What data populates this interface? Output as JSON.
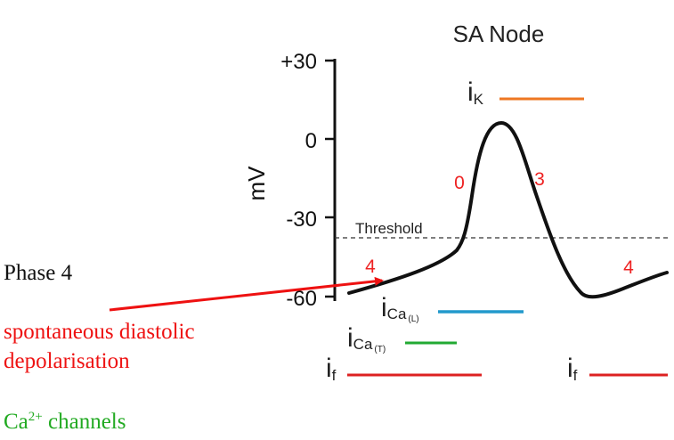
{
  "title": "SA Node",
  "y_axis": {
    "label": "mV",
    "ticks": [
      "+30",
      "0",
      "-30",
      "-60"
    ]
  },
  "threshold_label": "Threshold",
  "phase_labels": {
    "phase4_left": "4",
    "phase0": "0",
    "phase3": "3",
    "phase4_right": "4"
  },
  "currents": {
    "iK": {
      "main": "i",
      "sub": "K",
      "color": "#ee7722"
    },
    "iCaL": {
      "main": "i",
      "sub": "Ca",
      "subsub": "(L)",
      "color": "#2299cc"
    },
    "iCaT": {
      "main": "i",
      "sub": "Ca",
      "subsub": "(T)",
      "color": "#22aa33"
    },
    "if_left": {
      "main": "i",
      "sub": "f",
      "color": "#dd2222"
    },
    "if_right": {
      "main": "i",
      "sub": "f",
      "color": "#dd2222"
    }
  },
  "annotations": {
    "phase4": "Phase 4",
    "spontaneous_line1": "spontaneous diastolic",
    "spontaneous_line2": "depolarisation",
    "ca_channels_prefix": "Ca",
    "ca_channels_sup": "2+",
    "ca_channels_suffix": " channels"
  },
  "colors": {
    "phase_number": "#ee2222",
    "arrow": "#ee1111",
    "curve": "#111111",
    "annotation_red": "#ee1111",
    "annotation_green": "#22aa22"
  }
}
